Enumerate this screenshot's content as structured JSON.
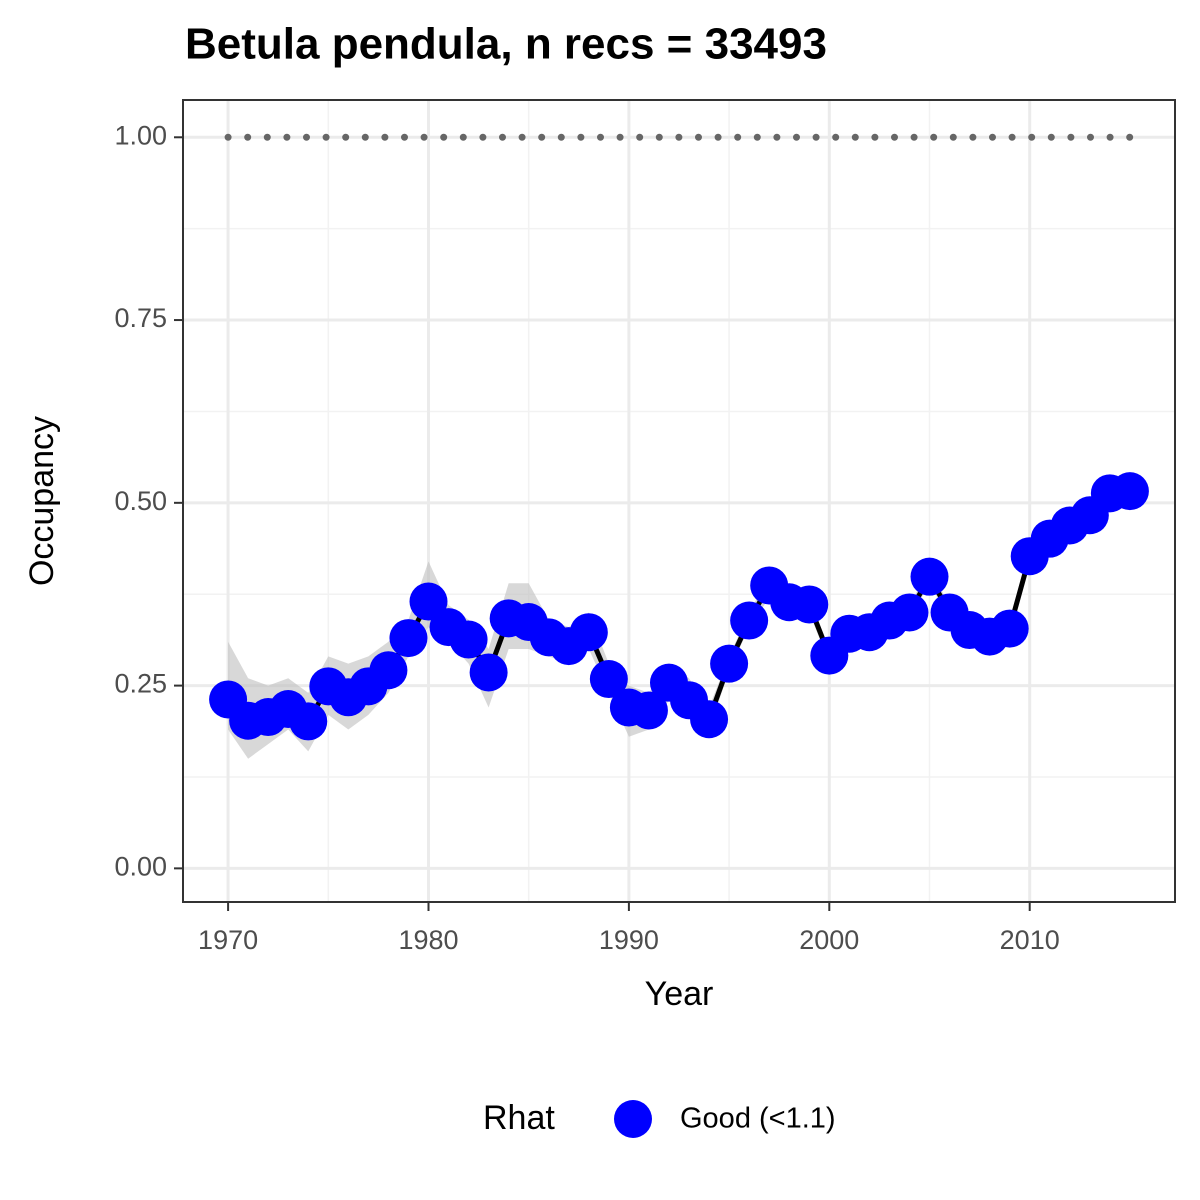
{
  "chart_data": {
    "type": "line",
    "title": "Betula pendula, n recs = 33493",
    "x_label": "Year",
    "y_label": "Occupancy",
    "x": [
      1970,
      1971,
      1972,
      1973,
      1974,
      1975,
      1976,
      1977,
      1978,
      1979,
      1980,
      1981,
      1982,
      1983,
      1984,
      1985,
      1986,
      1987,
      1988,
      1989,
      1990,
      1991,
      1992,
      1993,
      1994,
      1995,
      1996,
      1997,
      1998,
      1999,
      2000,
      2001,
      2002,
      2003,
      2004,
      2005,
      2006,
      2007,
      2008,
      2009,
      2010,
      2011,
      2012,
      2013,
      2014,
      2015
    ],
    "series": [
      {
        "name": "Good (<1.1)",
        "color": "#0000ff",
        "line_color": "#000000",
        "values": [
          0.231,
          0.202,
          0.207,
          0.218,
          0.201,
          0.249,
          0.234,
          0.249,
          0.271,
          0.315,
          0.365,
          0.33,
          0.313,
          0.268,
          0.342,
          0.337,
          0.316,
          0.304,
          0.323,
          0.259,
          0.22,
          0.216,
          0.254,
          0.23,
          0.204,
          0.28,
          0.339,
          0.387,
          0.364,
          0.361,
          0.291,
          0.321,
          0.323,
          0.339,
          0.35,
          0.399,
          0.35,
          0.326,
          0.317,
          0.328,
          0.427,
          0.451,
          0.469,
          0.483,
          0.513,
          0.516
        ],
        "lower": [
          0.19,
          0.15,
          0.17,
          0.19,
          0.16,
          0.21,
          0.19,
          0.21,
          0.24,
          0.29,
          0.33,
          0.31,
          0.28,
          0.22,
          0.3,
          0.3,
          0.29,
          0.28,
          0.3,
          0.24,
          0.18,
          0.19,
          0.23,
          0.21,
          0.19,
          0.27,
          0.33,
          0.37,
          0.35,
          0.35,
          0.28,
          0.31,
          0.31,
          0.33,
          0.34,
          0.39,
          0.34,
          0.32,
          0.31,
          0.32,
          0.42,
          0.44,
          0.46,
          0.47,
          0.5,
          0.51
        ],
        "upper": [
          0.31,
          0.26,
          0.25,
          0.26,
          0.24,
          0.29,
          0.28,
          0.29,
          0.31,
          0.34,
          0.42,
          0.36,
          0.34,
          0.3,
          0.39,
          0.39,
          0.34,
          0.33,
          0.35,
          0.28,
          0.25,
          0.24,
          0.28,
          0.26,
          0.22,
          0.29,
          0.35,
          0.4,
          0.38,
          0.37,
          0.3,
          0.33,
          0.33,
          0.35,
          0.36,
          0.41,
          0.36,
          0.33,
          0.32,
          0.34,
          0.44,
          0.46,
          0.48,
          0.49,
          0.52,
          0.53
        ]
      }
    ],
    "reference_line": {
      "value": 1,
      "color": "#666666"
    },
    "band_color": "#bebebe",
    "legend_title": "Rhat",
    "legend_position": "bottom",
    "xlim": [
      1967.75,
      2017.25
    ],
    "xticks": [
      1970,
      1980,
      1990,
      2000,
      2010
    ],
    "ylim": [
      -0.046,
      1.051
    ],
    "yticks": [
      {
        "value": 0,
        "label": "0.00"
      },
      {
        "value": 0.25,
        "label": "0.25"
      },
      {
        "value": 0.5,
        "label": "0.50"
      },
      {
        "value": 0.75,
        "label": "0.75"
      },
      {
        "value": 1,
        "label": "1.00"
      }
    ],
    "grid": true,
    "minor_grid": true
  }
}
